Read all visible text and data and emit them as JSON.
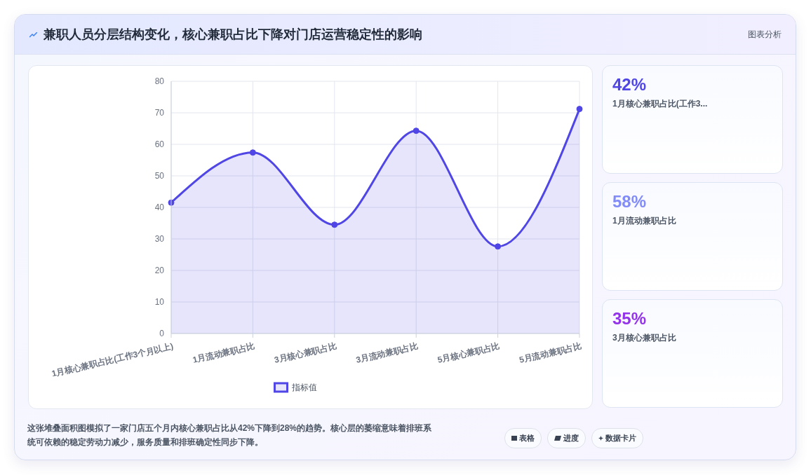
{
  "chart_data": [
    {
      "type": "area",
      "title": "兼职人员分层结构变化，核心兼职占比下降对门店运营稳定性的影响",
      "annotations": [
        "图表分析",
        "这张堆叠面积图模拟了一家门店五个月内核心兼职占比从42%下降到28%的趋势。核心层的萎缩意味着排班系统可依赖的稳定劳动力减少，服务质量和排班确定性同步下降。",
        "表格",
        "进度",
        "数据卡片"
      ],
      "categories": [
        "1月核心兼职占比(工作3个月以上)",
        "1月流动兼职占比",
        "3月核心兼职占比",
        "3月流动兼职占比",
        "5月核心兼职占比",
        "5月流动兼职占比"
      ],
      "series": [
        {
          "name": "指标值",
          "color": "#4f46e5",
          "values": [
            41.5,
            57.4,
            34.5,
            64.3,
            27.6,
            71.2
          ]
        }
      ],
      "ylim": [
        0,
        80
      ],
      "yticks": [
        0,
        10,
        20,
        30,
        40,
        50,
        60,
        70,
        80
      ],
      "grid": true,
      "legend": "bottom",
      "marker": "circle"
    },
    {
      "type": "other",
      "annotations": [
        "42%",
        "1月核心兼职占比(工作3...",
        "58%",
        "1月流动兼职占比",
        "35%",
        "3月核心兼职占比"
      ]
    }
  ]
}
